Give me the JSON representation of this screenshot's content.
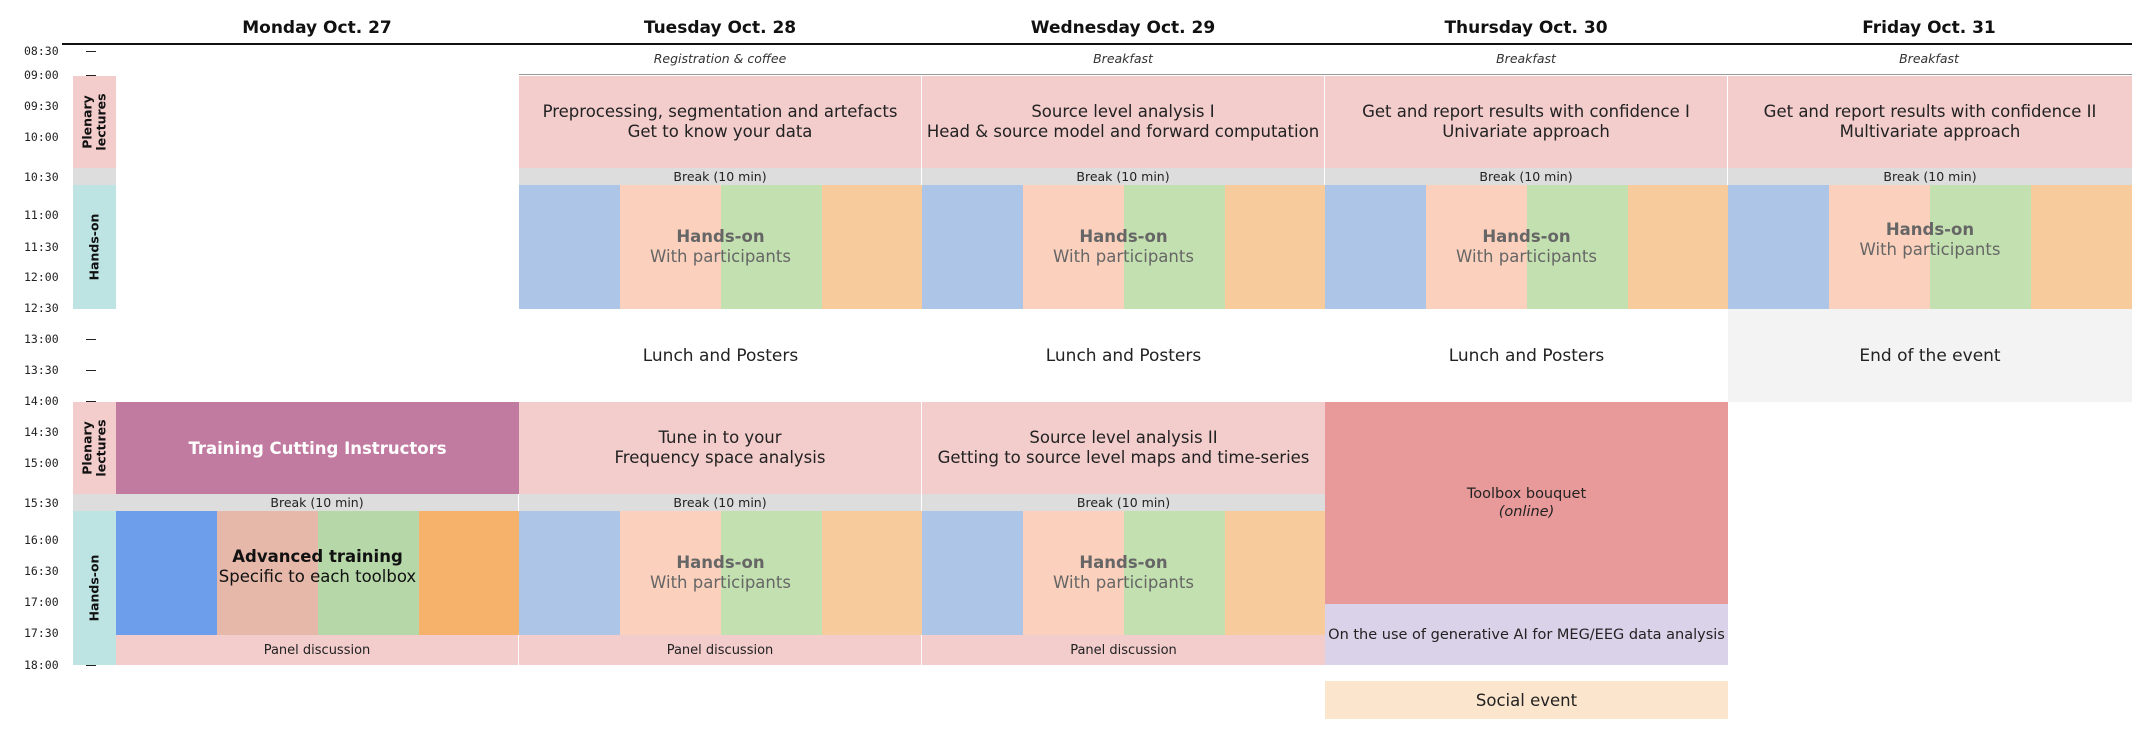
{
  "days": [
    {
      "name": "Monday Oct. 27",
      "subtitle": ""
    },
    {
      "name": "Tuesday Oct. 28",
      "subtitle": "Registration & coffee"
    },
    {
      "name": "Wednesday Oct. 29",
      "subtitle": "Breakfast"
    },
    {
      "name": "Thursday Oct. 30",
      "subtitle": "Breakfast"
    },
    {
      "name": "Friday Oct. 31",
      "subtitle": "Breakfast"
    }
  ],
  "times": [
    "08:30",
    "09:00",
    "09:30",
    "10:00",
    "10:30",
    "11:00",
    "11:30",
    "12:00",
    "12:30",
    "13:00",
    "13:30",
    "14:00",
    "14:30",
    "15:00",
    "15:30",
    "16:00",
    "16:30",
    "17:00",
    "17:30",
    "18:00"
  ],
  "row_labels": {
    "plenary_am": "Plenary lectures",
    "handson_am": "Hands-on",
    "plenary_pm": "Plenary lectures",
    "handson_pm": "Hands-on"
  },
  "morning": {
    "tuesday": {
      "line1": "Preprocessing, segmentation and artefacts",
      "line2": "Get to know your data"
    },
    "wednesday": {
      "line1": "Source level analysis I",
      "line2": "Head & source model and forward computation"
    },
    "thursday": {
      "line1": "Get and report results with confidence I",
      "line2": "Univariate approach"
    },
    "friday": {
      "line1": "Get and report results with confidence II",
      "line2": "Multivariate approach"
    }
  },
  "break_label": "Break (10 min)",
  "handson": {
    "title": "Hands-on",
    "subtitle": "With participants"
  },
  "lunch": {
    "tuesday": "Lunch and Posters",
    "wednesday": "Lunch and Posters",
    "thursday": "Lunch and Posters",
    "friday": "End of the event"
  },
  "afternoon": {
    "monday": "Training Cutting Instructors",
    "tuesday": {
      "line1": "Tune in to your",
      "line2": "Frequency space analysis"
    },
    "wednesday": {
      "line1": "Source level analysis II",
      "line2": "Getting to source level maps and time-series"
    },
    "thursday": {
      "line1": "Toolbox bouquet",
      "line2": "(online)"
    }
  },
  "advanced": {
    "title": "Advanced training",
    "subtitle": "Specific to each toolbox"
  },
  "panel_label": "Panel discussion",
  "ai_session": "On the use of generative AI for MEG/EEG data analysis",
  "social": "Social event",
  "colors": {
    "plenary": "#f3cccc",
    "break": "#dddddd",
    "handson_label": "#bde3e3",
    "training_cutting": "#c27ba0",
    "toolbox_bouquet": "#e89a9a",
    "ai_session": "#d9d2e9",
    "social": "#fce5cd",
    "end_event": "#f3f3f3",
    "pale_blue": "#adc6e8",
    "pale_peach": "#fbd0bd",
    "pale_green": "#c3e1b0",
    "pale_orange": "#f8cb9c",
    "blue": "#6d9eeb",
    "rose": "#e6b8a9",
    "green": "#b6d7a8",
    "orange": "#f6b26b"
  }
}
